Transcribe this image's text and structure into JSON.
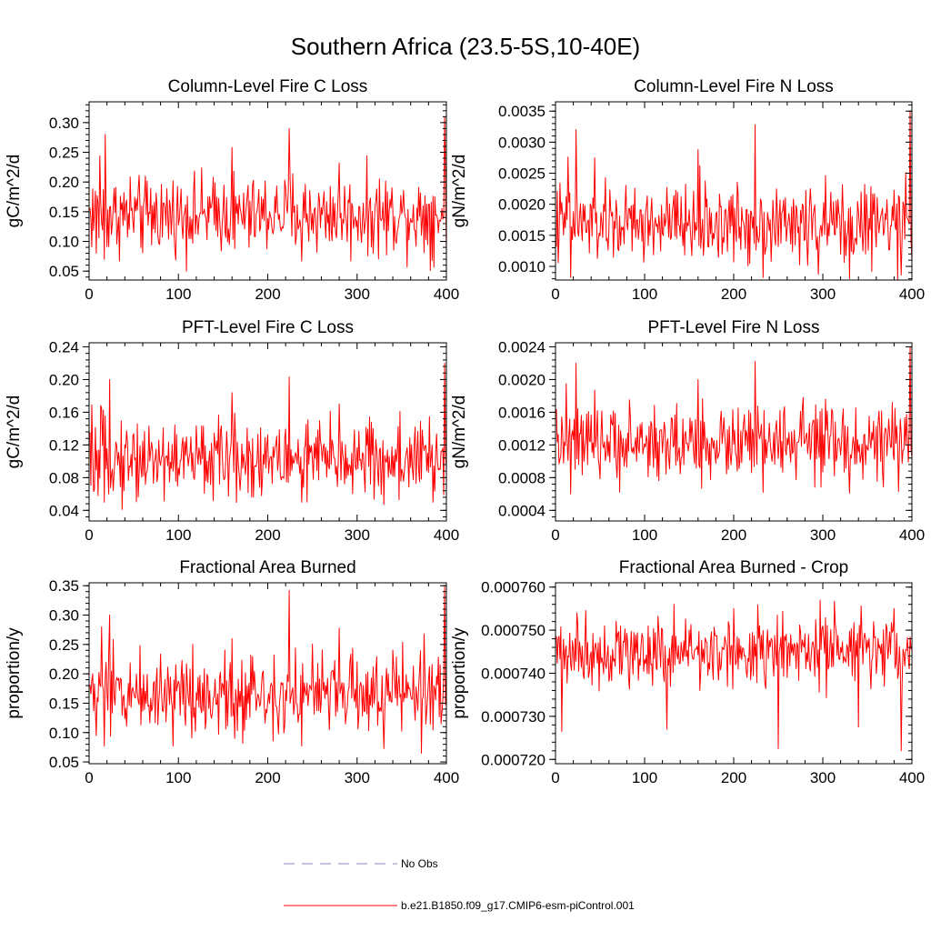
{
  "title": "Southern Africa (23.5-5S,10-40E)",
  "colors": {
    "series": "#ff0000",
    "no_obs": "#8888cc",
    "axes": "#000000"
  },
  "legend": {
    "placement": "bottom-center",
    "entries": [
      {
        "label": "No Obs",
        "style": "dashed",
        "color": "#8888cc"
      },
      {
        "label": "b.e21.B1850.f09_g17.CMIP6-esm-piControl.001",
        "style": "solid",
        "color": "#ff0000"
      }
    ]
  },
  "chart_data": [
    {
      "type": "line",
      "title": "Column-Level Fire C Loss",
      "ylabel": "gC/m^2/d",
      "xlim": [
        0,
        400
      ],
      "ylim": [
        0.035,
        0.335
      ],
      "xticks": [
        0,
        100,
        200,
        300,
        400
      ],
      "xtick_labels": [
        "0",
        "100",
        "200",
        "300",
        "400"
      ],
      "yticks": [
        0.05,
        0.1,
        0.15,
        0.2,
        0.25,
        0.3
      ],
      "ytick_labels": [
        "0.05",
        "0.10",
        "0.15",
        "0.20",
        "0.25",
        "0.30"
      ],
      "series": [
        {
          "name": "b.e21.B1850.f09_g17.CMIP6-esm-piControl.001",
          "color": "#ff0000",
          "mean": 0.145,
          "spread": 0.045,
          "x_range": [
            1,
            400
          ],
          "peaks": [
            [
              18,
              0.28
            ],
            [
              160,
              0.258
            ],
            [
              224,
              0.29
            ],
            [
              398,
              0.31
            ],
            [
              12,
              0.244
            ],
            [
              280,
              0.232
            ]
          ],
          "troughs": [
            [
              17,
              0.07
            ],
            [
              8,
              0.08
            ],
            [
              238,
              0.067
            ],
            [
              384,
              0.068
            ],
            [
              163,
              0.088
            ]
          ]
        }
      ]
    },
    {
      "type": "line",
      "title": "Column-Level Fire N Loss",
      "ylabel": "gN/m^2/d",
      "xlim": [
        0,
        400
      ],
      "ylim": [
        0.00078,
        0.00365
      ],
      "xticks": [
        0,
        100,
        200,
        300,
        400
      ],
      "xtick_labels": [
        "0",
        "100",
        "200",
        "300",
        "400"
      ],
      "yticks": [
        0.001,
        0.0015,
        0.002,
        0.0025,
        0.003,
        0.0035
      ],
      "ytick_labels": [
        "0.0010",
        "0.0015",
        "0.0020",
        "0.0025",
        "0.0030",
        "0.0035"
      ],
      "series": [
        {
          "name": "b.e21.B1850.f09_g17.CMIP6-esm-piControl.001",
          "color": "#ff0000",
          "mean": 0.00168,
          "spread": 0.00042,
          "x_range": [
            1,
            400
          ],
          "peaks": [
            [
              23,
              0.0032
            ],
            [
              160,
              0.00288
            ],
            [
              224,
              0.00328
            ],
            [
              398,
              0.0035
            ],
            [
              14,
              0.00276
            ],
            [
              44,
              0.00275
            ]
          ],
          "troughs": [
            [
              17,
              0.00082
            ],
            [
              233,
              0.00082
            ],
            [
              330,
              0.0008
            ],
            [
              295,
              0.00087
            ],
            [
              388,
              0.00086
            ]
          ]
        }
      ]
    },
    {
      "type": "line",
      "title": "PFT-Level Fire C Loss",
      "ylabel": "gC/m^2/d",
      "xlim": [
        0,
        400
      ],
      "ylim": [
        0.027,
        0.245
      ],
      "xticks": [
        0,
        100,
        200,
        300,
        400
      ],
      "xtick_labels": [
        "0",
        "100",
        "200",
        "300",
        "400"
      ],
      "yticks": [
        0.04,
        0.08,
        0.12,
        0.16,
        0.2,
        0.24
      ],
      "ytick_labels": [
        "0.04",
        "0.08",
        "0.12",
        "0.16",
        "0.20",
        "0.24"
      ],
      "series": [
        {
          "name": "b.e21.B1850.f09_g17.CMIP6-esm-piControl.001",
          "color": "#ff0000",
          "mean": 0.103,
          "spread": 0.032,
          "x_range": [
            1,
            400
          ],
          "peaks": [
            [
              23,
              0.2
            ],
            [
              160,
              0.184
            ],
            [
              224,
              0.203
            ],
            [
              398,
              0.22
            ],
            [
              14,
              0.165
            ],
            [
              280,
              0.17
            ]
          ],
          "troughs": [
            [
              10,
              0.058
            ],
            [
              17,
              0.05
            ],
            [
              238,
              0.05
            ],
            [
              330,
              0.047
            ],
            [
              385,
              0.05
            ]
          ]
        }
      ]
    },
    {
      "type": "line",
      "title": "PFT-Level Fire N Loss",
      "ylabel": "gN/m^2/d",
      "xlim": [
        0,
        400
      ],
      "ylim": [
        0.00027,
        0.00245
      ],
      "xticks": [
        0,
        100,
        200,
        300,
        400
      ],
      "xtick_labels": [
        "0",
        "100",
        "200",
        "300",
        "400"
      ],
      "yticks": [
        0.0004,
        0.0008,
        0.0012,
        0.0016,
        0.002,
        0.0024
      ],
      "ytick_labels": [
        "0.0004",
        "0.0008",
        "0.0012",
        "0.0016",
        "0.0020",
        "0.0024"
      ],
      "series": [
        {
          "name": "b.e21.B1850.f09_g17.CMIP6-esm-piControl.001",
          "color": "#ff0000",
          "mean": 0.00122,
          "spread": 0.0003,
          "x_range": [
            1,
            400
          ],
          "peaks": [
            [
              23,
              0.0022
            ],
            [
              160,
              0.002
            ],
            [
              224,
              0.00222
            ],
            [
              398,
              0.0024
            ],
            [
              12,
              0.00195
            ],
            [
              278,
              0.00178
            ]
          ],
          "troughs": [
            [
              17,
              0.0006
            ],
            [
              233,
              0.00062
            ],
            [
              330,
              0.00061
            ],
            [
              385,
              0.00063
            ]
          ]
        }
      ]
    },
    {
      "type": "line",
      "title": "Fractional Area Burned",
      "ylabel": "proportion/y",
      "xlim": [
        0,
        400
      ],
      "ylim": [
        0.047,
        0.355
      ],
      "xticks": [
        0,
        100,
        200,
        300,
        400
      ],
      "xtick_labels": [
        "0",
        "100",
        "200",
        "300",
        "400"
      ],
      "yticks": [
        0.05,
        0.1,
        0.15,
        0.2,
        0.25,
        0.3,
        0.35
      ],
      "ytick_labels": [
        "0.05",
        "0.10",
        "0.15",
        "0.20",
        "0.25",
        "0.30",
        "0.35"
      ],
      "series": [
        {
          "name": "b.e21.B1850.f09_g17.CMIP6-esm-piControl.001",
          "color": "#ff0000",
          "mean": 0.168,
          "spread": 0.048,
          "x_range": [
            1,
            400
          ],
          "peaks": [
            [
              23,
              0.3
            ],
            [
              224,
              0.342
            ],
            [
              398,
              0.348
            ],
            [
              14,
              0.28
            ],
            [
              160,
              0.26
            ],
            [
              280,
              0.278
            ],
            [
              375,
              0.268
            ]
          ],
          "troughs": [
            [
              17,
              0.077
            ],
            [
              238,
              0.077
            ],
            [
              330,
              0.073
            ],
            [
              163,
              0.09
            ],
            [
              8,
              0.095
            ]
          ]
        }
      ]
    },
    {
      "type": "line",
      "title": "Fractional Area Burned - Crop",
      "ylabel": "proportion/y",
      "xlim": [
        0,
        400
      ],
      "ylim": [
        0.000719,
        0.000761
      ],
      "xticks": [
        0,
        100,
        200,
        300,
        400
      ],
      "xtick_labels": [
        "0",
        "100",
        "200",
        "300",
        "400"
      ],
      "yticks": [
        0.00072,
        0.00073,
        0.00074,
        0.00075,
        0.00076
      ],
      "ytick_labels": [
        "0.000720",
        "0.000730",
        "0.000740",
        "0.000750",
        "0.000760"
      ],
      "series": [
        {
          "name": "b.e21.B1850.f09_g17.CMIP6-esm-piControl.001",
          "color": "#ff0000",
          "mean": 0.000745,
          "spread": 5.5e-06,
          "x_range": [
            1,
            400
          ],
          "peaks": [
            [
              133,
              0.000756
            ],
            [
              297,
              0.000757
            ],
            [
              24,
              0.000754
            ],
            [
              200,
              0.000755
            ],
            [
              380,
              0.000755
            ]
          ],
          "troughs": [
            [
              250,
              0.0007225
            ],
            [
              388,
              0.000722
            ],
            [
              7,
              0.0007265
            ],
            [
              125,
              0.000727
            ],
            [
              340,
              0.0007275
            ]
          ]
        }
      ]
    }
  ]
}
